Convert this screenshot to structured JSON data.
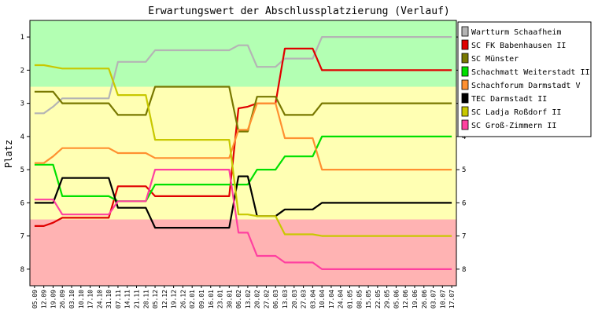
{
  "chart_data": {
    "type": "line",
    "title": "Erwartungswert der Abschlussplatzierung (Verlauf)",
    "ylabel": "Platz",
    "xlabel": "",
    "ylim": [
      0.5,
      8.5
    ],
    "y_inverted": true,
    "yticks": [
      1,
      2,
      3,
      4,
      5,
      6,
      7,
      8
    ],
    "grid": false,
    "legend_position": "right",
    "zones": [
      {
        "from": 0.5,
        "to": 2.5,
        "color": "#b3ffb3"
      },
      {
        "from": 2.5,
        "to": 6.5,
        "color": "#ffffb3"
      },
      {
        "from": 6.5,
        "to": 8.5,
        "color": "#ffb3b3"
      }
    ],
    "categories": [
      "05.09",
      "12.09",
      "19.09",
      "26.09",
      "03.10",
      "10.10",
      "17.10",
      "24.10",
      "31.10",
      "07.11",
      "14.11",
      "21.11",
      "28.11",
      "05.12",
      "12.12",
      "19.12",
      "26.12",
      "02.01",
      "09.01",
      "16.01",
      "23.01",
      "30.01",
      "06.02",
      "13.02",
      "20.02",
      "27.02",
      "06.03",
      "13.03",
      "20.03",
      "27.03",
      "03.04",
      "10.04",
      "17.04",
      "24.04",
      "01.05",
      "08.05",
      "15.05",
      "22.05",
      "29.05",
      "05.06",
      "12.06",
      "19.06",
      "26.06",
      "03.07",
      "10.07",
      "17.07"
    ],
    "series": [
      {
        "name": "Wartturm Schaafheim",
        "color": "#b4b4b4",
        "values": [
          3.3,
          3.3,
          3.1,
          2.85,
          2.85,
          2.85,
          2.85,
          2.85,
          2.85,
          1.75,
          1.75,
          1.75,
          1.75,
          1.4,
          1.4,
          1.4,
          1.4,
          1.4,
          1.4,
          1.4,
          1.4,
          1.4,
          1.25,
          1.25,
          1.9,
          1.9,
          1.9,
          1.65,
          1.65,
          1.65,
          1.65,
          1.0,
          1.0,
          1.0,
          1.0,
          1.0,
          1.0,
          1.0,
          1.0,
          1.0,
          1.0,
          1.0,
          1.0,
          1.0,
          1.0,
          1.0
        ]
      },
      {
        "name": "SC FK Babenhausen II",
        "color": "#e00000",
        "values": [
          6.7,
          6.7,
          6.6,
          6.45,
          6.45,
          6.45,
          6.45,
          6.45,
          6.45,
          5.5,
          5.5,
          5.5,
          5.5,
          5.8,
          5.8,
          5.8,
          5.8,
          5.8,
          5.8,
          5.8,
          5.8,
          5.8,
          3.15,
          3.1,
          3.0,
          3.0,
          3.0,
          1.35,
          1.35,
          1.35,
          1.35,
          2.0,
          2.0,
          2.0,
          2.0,
          2.0,
          2.0,
          2.0,
          2.0,
          2.0,
          2.0,
          2.0,
          2.0,
          2.0,
          2.0,
          2.0
        ]
      },
      {
        "name": "SC Münster",
        "color": "#787800",
        "values": [
          2.65,
          2.65,
          2.65,
          3.0,
          3.0,
          3.0,
          3.0,
          3.0,
          3.0,
          3.35,
          3.35,
          3.35,
          3.35,
          2.5,
          2.5,
          2.5,
          2.5,
          2.5,
          2.5,
          2.5,
          2.5,
          2.5,
          3.85,
          3.85,
          2.8,
          2.8,
          2.8,
          3.35,
          3.35,
          3.35,
          3.35,
          3.0,
          3.0,
          3.0,
          3.0,
          3.0,
          3.0,
          3.0,
          3.0,
          3.0,
          3.0,
          3.0,
          3.0,
          3.0,
          3.0,
          3.0
        ]
      },
      {
        "name": "Schachmatt Weiterstadt II",
        "color": "#00e000",
        "values": [
          4.85,
          4.85,
          4.85,
          5.8,
          5.8,
          5.8,
          5.8,
          5.8,
          5.8,
          5.95,
          5.95,
          5.95,
          5.95,
          5.45,
          5.45,
          5.45,
          5.45,
          5.45,
          5.45,
          5.45,
          5.45,
          5.45,
          5.45,
          5.45,
          5.0,
          5.0,
          5.0,
          4.6,
          4.6,
          4.6,
          4.6,
          4.0,
          4.0,
          4.0,
          4.0,
          4.0,
          4.0,
          4.0,
          4.0,
          4.0,
          4.0,
          4.0,
          4.0,
          4.0,
          4.0,
          4.0
        ]
      },
      {
        "name": "Schachforum Darmstadt V",
        "color": "#ff9030",
        "values": [
          4.8,
          4.8,
          4.6,
          4.35,
          4.35,
          4.35,
          4.35,
          4.35,
          4.35,
          4.5,
          4.5,
          4.5,
          4.5,
          4.65,
          4.65,
          4.65,
          4.65,
          4.65,
          4.65,
          4.65,
          4.65,
          4.65,
          3.8,
          3.8,
          3.0,
          3.0,
          3.0,
          4.05,
          4.05,
          4.05,
          4.05,
          5.0,
          5.0,
          5.0,
          5.0,
          5.0,
          5.0,
          5.0,
          5.0,
          5.0,
          5.0,
          5.0,
          5.0,
          5.0,
          5.0,
          5.0
        ]
      },
      {
        "name": "TEC Darmstadt II",
        "color": "#000000",
        "values": [
          6.0,
          6.0,
          6.0,
          5.25,
          5.25,
          5.25,
          5.25,
          5.25,
          5.25,
          6.15,
          6.15,
          6.15,
          6.15,
          6.75,
          6.75,
          6.75,
          6.75,
          6.75,
          6.75,
          6.75,
          6.75,
          6.75,
          5.2,
          5.2,
          6.4,
          6.4,
          6.4,
          6.2,
          6.2,
          6.2,
          6.2,
          6.0,
          6.0,
          6.0,
          6.0,
          6.0,
          6.0,
          6.0,
          6.0,
          6.0,
          6.0,
          6.0,
          6.0,
          6.0,
          6.0,
          6.0
        ]
      },
      {
        "name": "SC Ladja Roßdorf II",
        "color": "#c8c800",
        "values": [
          1.85,
          1.85,
          1.9,
          1.95,
          1.95,
          1.95,
          1.95,
          1.95,
          1.95,
          2.75,
          2.75,
          2.75,
          2.75,
          4.1,
          4.1,
          4.1,
          4.1,
          4.1,
          4.1,
          4.1,
          4.1,
          4.1,
          6.35,
          6.35,
          6.4,
          6.4,
          6.4,
          6.95,
          6.95,
          6.95,
          6.95,
          7.0,
          7.0,
          7.0,
          7.0,
          7.0,
          7.0,
          7.0,
          7.0,
          7.0,
          7.0,
          7.0,
          7.0,
          7.0,
          7.0,
          7.0
        ]
      },
      {
        "name": "SC Groß-Zimmern II",
        "color": "#ff40a0",
        "values": [
          5.9,
          5.9,
          5.9,
          6.35,
          6.35,
          6.35,
          6.35,
          6.35,
          6.35,
          5.95,
          5.95,
          5.95,
          5.95,
          5.0,
          5.0,
          5.0,
          5.0,
          5.0,
          5.0,
          5.0,
          5.0,
          5.0,
          6.9,
          6.9,
          7.6,
          7.6,
          7.6,
          7.8,
          7.8,
          7.8,
          7.8,
          8.0,
          8.0,
          8.0,
          8.0,
          8.0,
          8.0,
          8.0,
          8.0,
          8.0,
          8.0,
          8.0,
          8.0,
          8.0,
          8.0,
          8.0
        ]
      }
    ]
  }
}
